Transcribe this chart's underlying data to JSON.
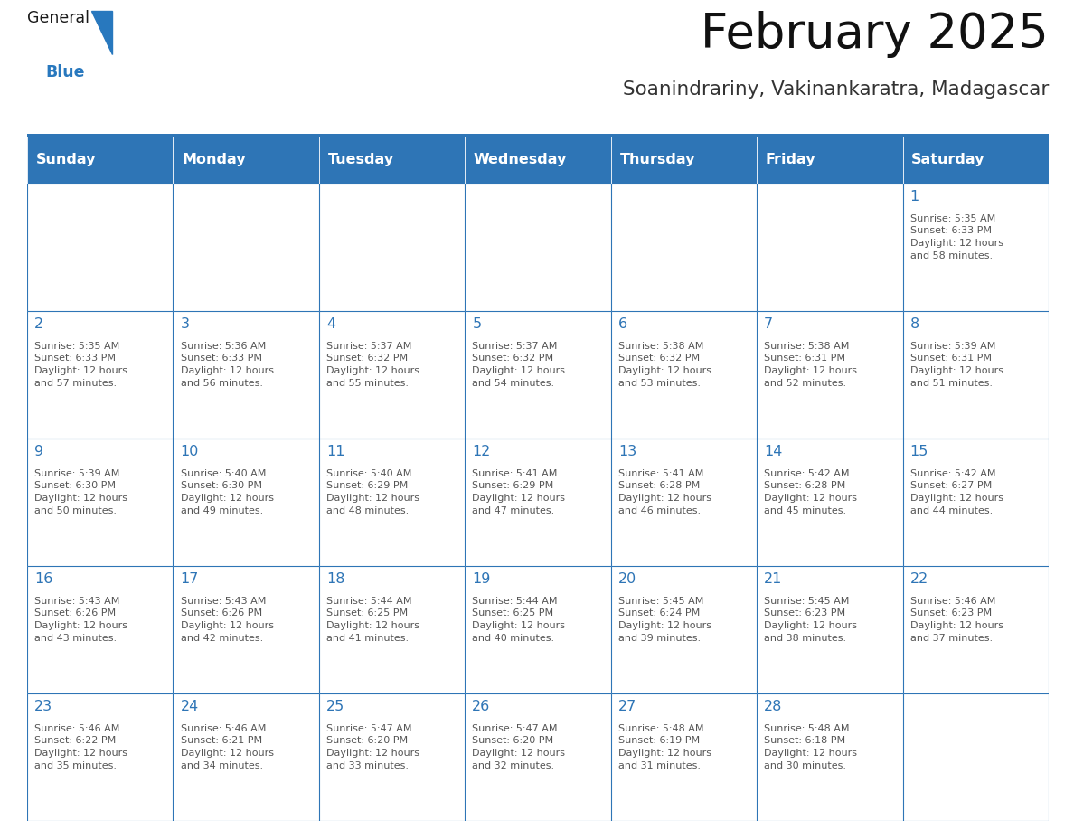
{
  "title": "February 2025",
  "subtitle": "Soanindrariny, Vakinankaratra, Madagascar",
  "header_bg": "#2E75B6",
  "header_text": "#FFFFFF",
  "border_color": "#2E75B6",
  "day_num_color": "#2E75B6",
  "info_text_color": "#555555",
  "days_of_week": [
    "Sunday",
    "Monday",
    "Tuesday",
    "Wednesday",
    "Thursday",
    "Friday",
    "Saturday"
  ],
  "calendar_data": [
    [
      {
        "day": "",
        "info": ""
      },
      {
        "day": "",
        "info": ""
      },
      {
        "day": "",
        "info": ""
      },
      {
        "day": "",
        "info": ""
      },
      {
        "day": "",
        "info": ""
      },
      {
        "day": "",
        "info": ""
      },
      {
        "day": "1",
        "info": "Sunrise: 5:35 AM\nSunset: 6:33 PM\nDaylight: 12 hours\nand 58 minutes."
      }
    ],
    [
      {
        "day": "2",
        "info": "Sunrise: 5:35 AM\nSunset: 6:33 PM\nDaylight: 12 hours\nand 57 minutes."
      },
      {
        "day": "3",
        "info": "Sunrise: 5:36 AM\nSunset: 6:33 PM\nDaylight: 12 hours\nand 56 minutes."
      },
      {
        "day": "4",
        "info": "Sunrise: 5:37 AM\nSunset: 6:32 PM\nDaylight: 12 hours\nand 55 minutes."
      },
      {
        "day": "5",
        "info": "Sunrise: 5:37 AM\nSunset: 6:32 PM\nDaylight: 12 hours\nand 54 minutes."
      },
      {
        "day": "6",
        "info": "Sunrise: 5:38 AM\nSunset: 6:32 PM\nDaylight: 12 hours\nand 53 minutes."
      },
      {
        "day": "7",
        "info": "Sunrise: 5:38 AM\nSunset: 6:31 PM\nDaylight: 12 hours\nand 52 minutes."
      },
      {
        "day": "8",
        "info": "Sunrise: 5:39 AM\nSunset: 6:31 PM\nDaylight: 12 hours\nand 51 minutes."
      }
    ],
    [
      {
        "day": "9",
        "info": "Sunrise: 5:39 AM\nSunset: 6:30 PM\nDaylight: 12 hours\nand 50 minutes."
      },
      {
        "day": "10",
        "info": "Sunrise: 5:40 AM\nSunset: 6:30 PM\nDaylight: 12 hours\nand 49 minutes."
      },
      {
        "day": "11",
        "info": "Sunrise: 5:40 AM\nSunset: 6:29 PM\nDaylight: 12 hours\nand 48 minutes."
      },
      {
        "day": "12",
        "info": "Sunrise: 5:41 AM\nSunset: 6:29 PM\nDaylight: 12 hours\nand 47 minutes."
      },
      {
        "day": "13",
        "info": "Sunrise: 5:41 AM\nSunset: 6:28 PM\nDaylight: 12 hours\nand 46 minutes."
      },
      {
        "day": "14",
        "info": "Sunrise: 5:42 AM\nSunset: 6:28 PM\nDaylight: 12 hours\nand 45 minutes."
      },
      {
        "day": "15",
        "info": "Sunrise: 5:42 AM\nSunset: 6:27 PM\nDaylight: 12 hours\nand 44 minutes."
      }
    ],
    [
      {
        "day": "16",
        "info": "Sunrise: 5:43 AM\nSunset: 6:26 PM\nDaylight: 12 hours\nand 43 minutes."
      },
      {
        "day": "17",
        "info": "Sunrise: 5:43 AM\nSunset: 6:26 PM\nDaylight: 12 hours\nand 42 minutes."
      },
      {
        "day": "18",
        "info": "Sunrise: 5:44 AM\nSunset: 6:25 PM\nDaylight: 12 hours\nand 41 minutes."
      },
      {
        "day": "19",
        "info": "Sunrise: 5:44 AM\nSunset: 6:25 PM\nDaylight: 12 hours\nand 40 minutes."
      },
      {
        "day": "20",
        "info": "Sunrise: 5:45 AM\nSunset: 6:24 PM\nDaylight: 12 hours\nand 39 minutes."
      },
      {
        "day": "21",
        "info": "Sunrise: 5:45 AM\nSunset: 6:23 PM\nDaylight: 12 hours\nand 38 minutes."
      },
      {
        "day": "22",
        "info": "Sunrise: 5:46 AM\nSunset: 6:23 PM\nDaylight: 12 hours\nand 37 minutes."
      }
    ],
    [
      {
        "day": "23",
        "info": "Sunrise: 5:46 AM\nSunset: 6:22 PM\nDaylight: 12 hours\nand 35 minutes."
      },
      {
        "day": "24",
        "info": "Sunrise: 5:46 AM\nSunset: 6:21 PM\nDaylight: 12 hours\nand 34 minutes."
      },
      {
        "day": "25",
        "info": "Sunrise: 5:47 AM\nSunset: 6:20 PM\nDaylight: 12 hours\nand 33 minutes."
      },
      {
        "day": "26",
        "info": "Sunrise: 5:47 AM\nSunset: 6:20 PM\nDaylight: 12 hours\nand 32 minutes."
      },
      {
        "day": "27",
        "info": "Sunrise: 5:48 AM\nSunset: 6:19 PM\nDaylight: 12 hours\nand 31 minutes."
      },
      {
        "day": "28",
        "info": "Sunrise: 5:48 AM\nSunset: 6:18 PM\nDaylight: 12 hours\nand 30 minutes."
      },
      {
        "day": "",
        "info": ""
      }
    ]
  ],
  "logo_general_color": "#1a1a1a",
  "logo_blue_color": "#2878BE",
  "figsize": [
    11.88,
    9.18
  ],
  "dpi": 100
}
